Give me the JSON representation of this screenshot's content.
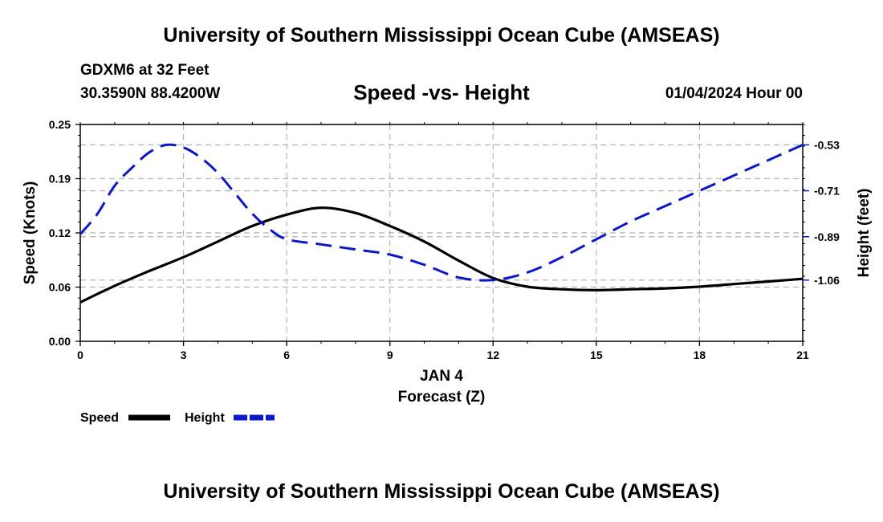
{
  "header": {
    "title": "University of Southern Mississippi Ocean Cube (AMSEAS)",
    "station": "GDXM6 at 32 Feet",
    "coordinates": "30.3590N  88.4200W",
    "datetime": "01/04/2024 Hour 00"
  },
  "footer": {
    "title": "University of Southern Mississippi Ocean Cube (AMSEAS)"
  },
  "chart_data": {
    "type": "line",
    "title": "Speed -vs- Height",
    "xlabel": "Forecast (Z)",
    "xdate_label": "JAN 4",
    "ylabel_left": "Speed (Knots)",
    "ylabel_right": "Height (feet)",
    "xlim": [
      0,
      21
    ],
    "x_ticks": [
      0,
      3,
      6,
      9,
      12,
      15,
      18,
      21
    ],
    "ylim_left": [
      0,
      0.25
    ],
    "y_ticks_left": [
      "0.00",
      "0.06",
      "0.12",
      "0.19",
      "0.25"
    ],
    "y_ticks_left_values": [
      0,
      0.0625,
      0.125,
      0.1875,
      0.25
    ],
    "ylim_right": [
      -1.3,
      -0.45
    ],
    "y_ticks_right": [
      "-0.53",
      "-0.71",
      "-0.89",
      "-1.06"
    ],
    "y_ticks_right_values": [
      -0.53,
      -0.71,
      -0.89,
      -1.06
    ],
    "grid": true,
    "legend_position": "bottom-left",
    "series": [
      {
        "name": "Speed",
        "axis": "left",
        "color": "#000000",
        "dash": "solid",
        "x": [
          0,
          1,
          2,
          3,
          4,
          5,
          6,
          7,
          8,
          9,
          10,
          11,
          12,
          13,
          14,
          15,
          16,
          17,
          18,
          19,
          20,
          21
        ],
        "values": [
          0.045,
          0.064,
          0.081,
          0.097,
          0.115,
          0.133,
          0.146,
          0.154,
          0.148,
          0.133,
          0.115,
          0.093,
          0.073,
          0.063,
          0.06,
          0.059,
          0.06,
          0.061,
          0.063,
          0.066,
          0.069,
          0.072
        ]
      },
      {
        "name": "Height",
        "axis": "right",
        "color": "#0a18c8",
        "dash": "dashed",
        "x": [
          0,
          0.5,
          1,
          1.5,
          2,
          2.5,
          3,
          3.5,
          4,
          4.5,
          5,
          5.5,
          6,
          7,
          8,
          9,
          10,
          11,
          12,
          13,
          14,
          15,
          16,
          17,
          18,
          19,
          20,
          21
        ],
        "values": [
          -0.88,
          -0.8,
          -0.69,
          -0.62,
          -0.56,
          -0.53,
          -0.54,
          -0.58,
          -0.64,
          -0.72,
          -0.8,
          -0.86,
          -0.9,
          -0.92,
          -0.94,
          -0.96,
          -1.0,
          -1.05,
          -1.06,
          -1.03,
          -0.97,
          -0.9,
          -0.83,
          -0.77,
          -0.71,
          -0.65,
          -0.59,
          -0.53
        ]
      }
    ]
  }
}
